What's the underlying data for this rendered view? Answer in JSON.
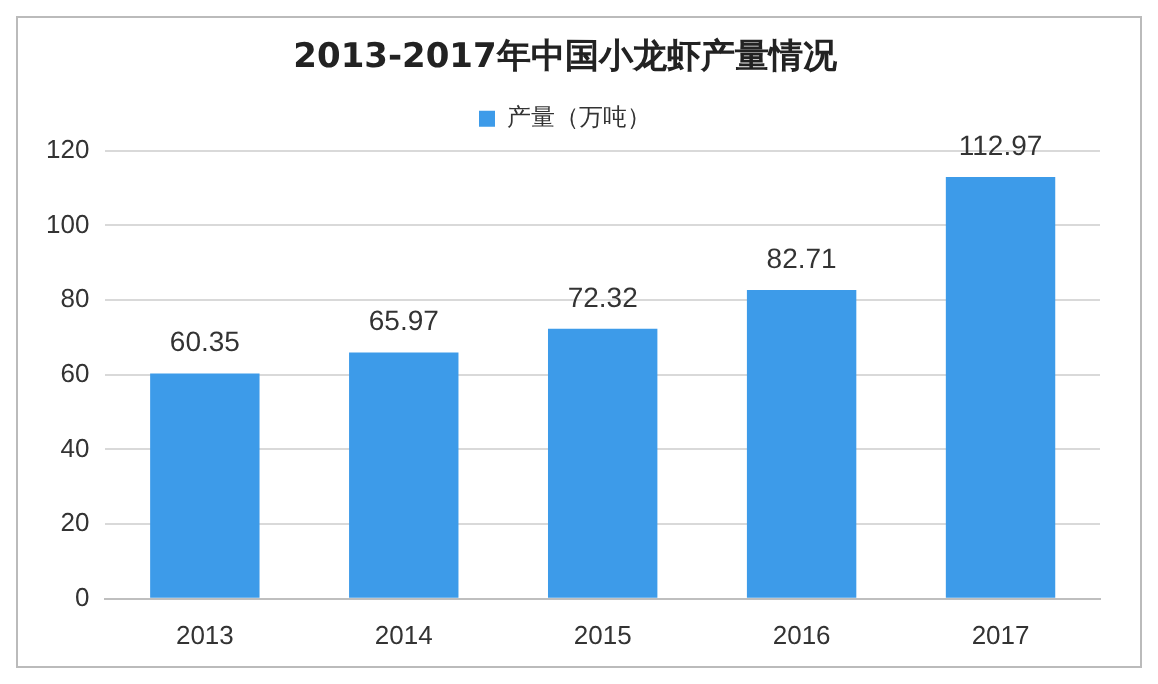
{
  "chart_data": {
    "type": "bar",
    "title": "2013-2017年中国小龙虾产量情况",
    "categories": [
      "2013",
      "2014",
      "2015",
      "2016",
      "2017"
    ],
    "series": [
      {
        "name": "产量（万吨）",
        "color": "#3d9be9",
        "values": [
          60.35,
          65.97,
          72.32,
          82.71,
          112.97
        ]
      }
    ],
    "ylim": [
      0,
      120
    ],
    "yticks": [
      0,
      20,
      40,
      60,
      80,
      100,
      120
    ],
    "grid": "y",
    "legend": "top",
    "data_labels": true
  }
}
